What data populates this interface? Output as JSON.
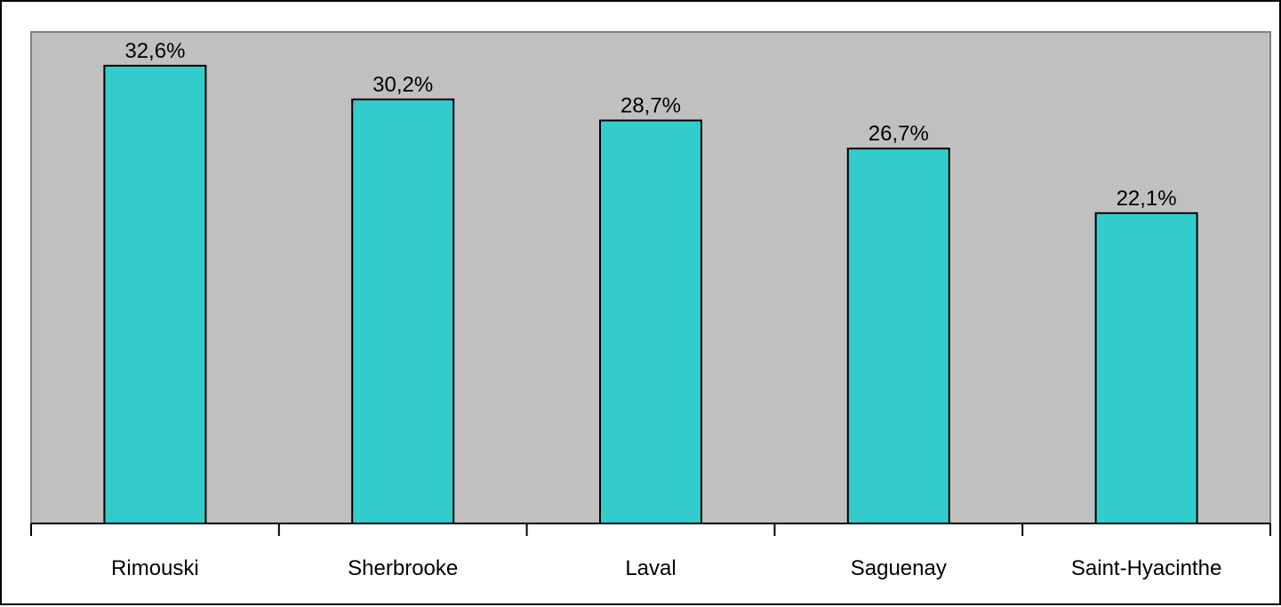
{
  "chart_data": {
    "type": "bar",
    "categories": [
      "Rimouski",
      "Sherbrooke",
      "Laval",
      "Saguenay",
      "Saint-Hyacinthe"
    ],
    "values": [
      32.6,
      30.2,
      28.7,
      26.7,
      22.1
    ],
    "data_labels": [
      "32,6%",
      "30,2%",
      "28,7%",
      "26,7%",
      "22,1%"
    ],
    "title": "",
    "xlabel": "",
    "ylabel": "",
    "ylim": [
      0,
      35
    ],
    "grid": false,
    "legend": "none",
    "colors": {
      "bar_fill": "#33CCCC",
      "bar_stroke": "#000000",
      "plot_background": "#C0C0C0",
      "plot_border": "#808080",
      "axis": "#000000"
    }
  }
}
